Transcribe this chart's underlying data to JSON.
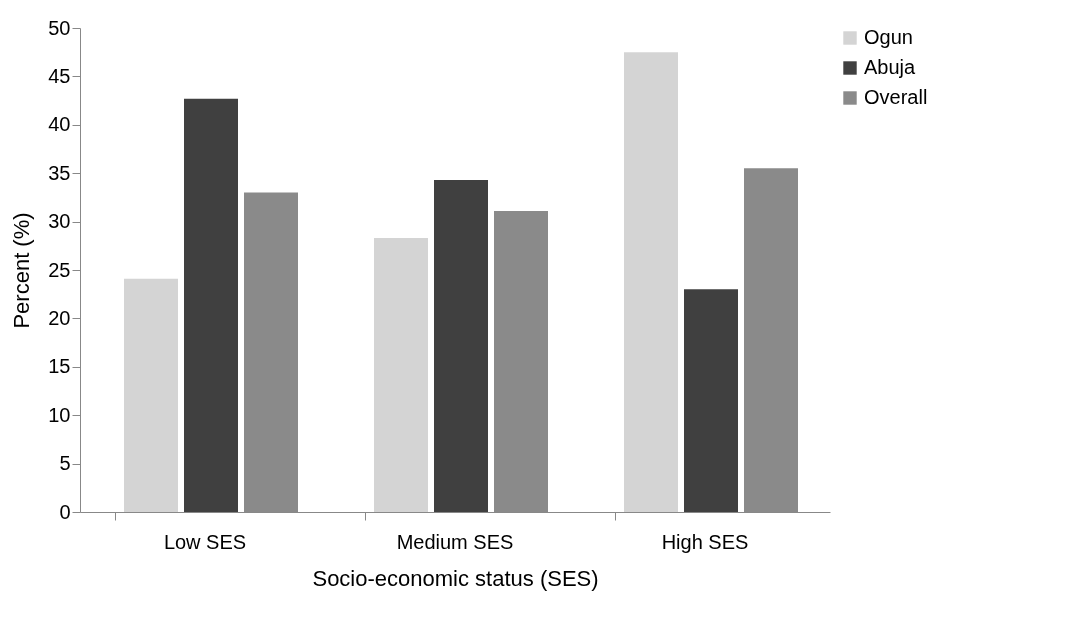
{
  "chart_data": {
    "type": "bar",
    "xlabel": "Socio-economic status (SES)",
    "ylabel": "Percent (%)",
    "categories": [
      "Low SES",
      "Medium SES",
      "High SES"
    ],
    "series": [
      {
        "name": "Ogun",
        "color": "#d4d4d4",
        "values": [
          24.1,
          28.3,
          47.5
        ]
      },
      {
        "name": "Abuja",
        "color": "#404040",
        "values": [
          42.7,
          34.3,
          23.0
        ]
      },
      {
        "name": "Overall",
        "color": "#8a8a8a",
        "values": [
          33.0,
          31.1,
          35.5
        ]
      }
    ],
    "ylim": [
      0,
      50
    ],
    "yticks": [
      0,
      5,
      10,
      15,
      20,
      25,
      30,
      35,
      40,
      45,
      50
    ],
    "grid": false,
    "legend": "right"
  }
}
